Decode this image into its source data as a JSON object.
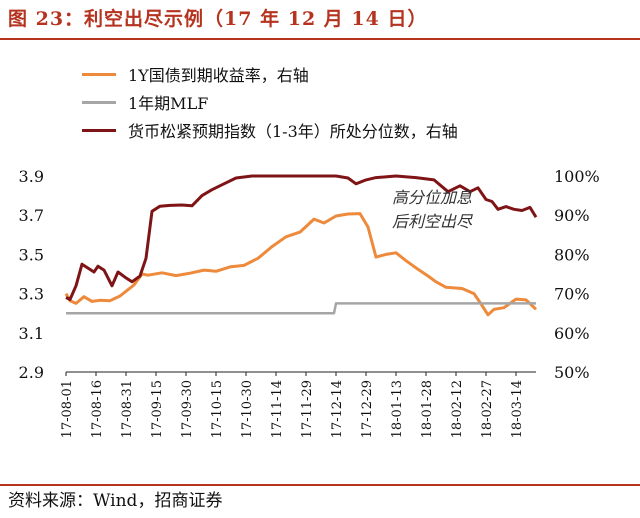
{
  "title": "图 23：利空出尽示例（17 年 12 月 14 日）",
  "source": "资料来源：Wind，招商证券",
  "annotation": [
    "高分位加息",
    "后利空出尽"
  ],
  "colors": {
    "accent": "#b5331f",
    "orange": "#ed8a3c",
    "gray": "#a6a6a6",
    "darkred": "#7f1416"
  },
  "chart_data": {
    "type": "line",
    "legend_placement": "top-left",
    "x_ticks": [
      "17-08-01",
      "17-08-16",
      "17-08-31",
      "17-09-15",
      "17-09-30",
      "17-10-15",
      "17-10-30",
      "17-11-14",
      "17-11-29",
      "17-12-14",
      "17-12-29",
      "18-01-13",
      "18-01-28",
      "18-02-12",
      "18-02-27",
      "18-03-14"
    ],
    "x_range": [
      "2017-08-01",
      "2018-03-24"
    ],
    "y_left": {
      "ticks": [
        "3.9",
        "3.7",
        "3.5",
        "3.3",
        "3.1",
        "2.9"
      ],
      "range": [
        2.9,
        3.9
      ]
    },
    "y_right": {
      "ticks": [
        "100%",
        "90%",
        "80%",
        "70%",
        "60%",
        "50%"
      ],
      "range": [
        50,
        100
      ]
    },
    "series": [
      {
        "name": "1Y国债到期收益率，右轴",
        "color": "#ed8a3c",
        "axis": "right",
        "points": [
          [
            "2017-08-01",
            70.0
          ],
          [
            "2017-08-03",
            68.2
          ],
          [
            "2017-08-06",
            67.5
          ],
          [
            "2017-08-10",
            69.2
          ],
          [
            "2017-08-14",
            68.0
          ],
          [
            "2017-08-18",
            68.3
          ],
          [
            "2017-08-23",
            68.2
          ],
          [
            "2017-08-28",
            69.4
          ],
          [
            "2017-09-01",
            71.0
          ],
          [
            "2017-09-04",
            72.2
          ],
          [
            "2017-09-08",
            75.0
          ],
          [
            "2017-09-11",
            74.7
          ],
          [
            "2017-09-18",
            75.3
          ],
          [
            "2017-09-25",
            74.6
          ],
          [
            "2017-10-02",
            75.2
          ],
          [
            "2017-10-09",
            76.0
          ],
          [
            "2017-10-15",
            75.7
          ],
          [
            "2017-10-22",
            76.8
          ],
          [
            "2017-10-29",
            77.2
          ],
          [
            "2017-11-05",
            79.0
          ],
          [
            "2017-11-12",
            82.0
          ],
          [
            "2017-11-19",
            84.5
          ],
          [
            "2017-11-26",
            85.7
          ],
          [
            "2017-12-03",
            89.0
          ],
          [
            "2017-12-08",
            88.0
          ],
          [
            "2017-12-14",
            89.8
          ],
          [
            "2017-12-20",
            90.3
          ],
          [
            "2017-12-26",
            90.4
          ],
          [
            "2017-12-30",
            87.0
          ],
          [
            "2018-01-03",
            79.3
          ],
          [
            "2018-01-08",
            80.0
          ],
          [
            "2018-01-13",
            80.4
          ],
          [
            "2018-01-18",
            78.4
          ],
          [
            "2018-01-24",
            76.2
          ],
          [
            "2018-01-29",
            74.5
          ],
          [
            "2018-02-02",
            73.0
          ],
          [
            "2018-02-07",
            71.6
          ],
          [
            "2018-02-15",
            71.3
          ],
          [
            "2018-02-21",
            70.0
          ],
          [
            "2018-02-25",
            67.0
          ],
          [
            "2018-02-28",
            64.6
          ],
          [
            "2018-03-03",
            66.0
          ],
          [
            "2018-03-08",
            66.4
          ],
          [
            "2018-03-14",
            68.6
          ],
          [
            "2018-03-19",
            68.4
          ],
          [
            "2018-03-24",
            66.0
          ]
        ]
      },
      {
        "name": "1年期MLF",
        "color": "#a6a6a6",
        "axis": "left",
        "points": [
          [
            "2017-08-01",
            3.2
          ],
          [
            "2017-12-13",
            3.2
          ],
          [
            "2017-12-14",
            3.25
          ],
          [
            "2018-03-24",
            3.25
          ]
        ]
      },
      {
        "name": "货币松紧预期指数（1-3年）所处分位数，右轴",
        "color": "#7f1416",
        "axis": "right",
        "points": [
          [
            "2017-08-01",
            69.0
          ],
          [
            "2017-08-03",
            68.5
          ],
          [
            "2017-08-06",
            72.0
          ],
          [
            "2017-08-09",
            77.5
          ],
          [
            "2017-08-12",
            76.5
          ],
          [
            "2017-08-15",
            75.5
          ],
          [
            "2017-08-17",
            77.0
          ],
          [
            "2017-08-20",
            76.0
          ],
          [
            "2017-08-24",
            72.0
          ],
          [
            "2017-08-27",
            75.5
          ],
          [
            "2017-08-31",
            74.0
          ],
          [
            "2017-09-03",
            73.0
          ],
          [
            "2017-09-07",
            74.5
          ],
          [
            "2017-09-10",
            79.0
          ],
          [
            "2017-09-13",
            91.0
          ],
          [
            "2017-09-17",
            92.3
          ],
          [
            "2017-09-22",
            92.5
          ],
          [
            "2017-09-28",
            92.6
          ],
          [
            "2017-10-03",
            92.4
          ],
          [
            "2017-10-08",
            95.0
          ],
          [
            "2017-10-13",
            96.5
          ],
          [
            "2017-10-19",
            98.0
          ],
          [
            "2017-10-25",
            99.5
          ],
          [
            "2017-11-02",
            100.0
          ],
          [
            "2017-11-14",
            100.0
          ],
          [
            "2017-11-26",
            100.0
          ],
          [
            "2017-12-08",
            100.0
          ],
          [
            "2017-12-14",
            100.0
          ],
          [
            "2017-12-20",
            99.5
          ],
          [
            "2017-12-24",
            98.0
          ],
          [
            "2017-12-29",
            99.0
          ],
          [
            "2018-01-03",
            99.6
          ],
          [
            "2018-01-13",
            100.0
          ],
          [
            "2018-01-23",
            99.6
          ],
          [
            "2018-02-01",
            99.0
          ],
          [
            "2018-02-08",
            96.0
          ],
          [
            "2018-02-14",
            97.5
          ],
          [
            "2018-02-19",
            96.0
          ],
          [
            "2018-02-23",
            97.0
          ],
          [
            "2018-02-27",
            94.0
          ],
          [
            "2018-03-02",
            93.5
          ],
          [
            "2018-03-05",
            91.5
          ],
          [
            "2018-03-09",
            92.2
          ],
          [
            "2018-03-13",
            91.5
          ],
          [
            "2018-03-17",
            91.2
          ],
          [
            "2018-03-21",
            92.0
          ],
          [
            "2018-03-24",
            89.5
          ]
        ]
      }
    ]
  }
}
